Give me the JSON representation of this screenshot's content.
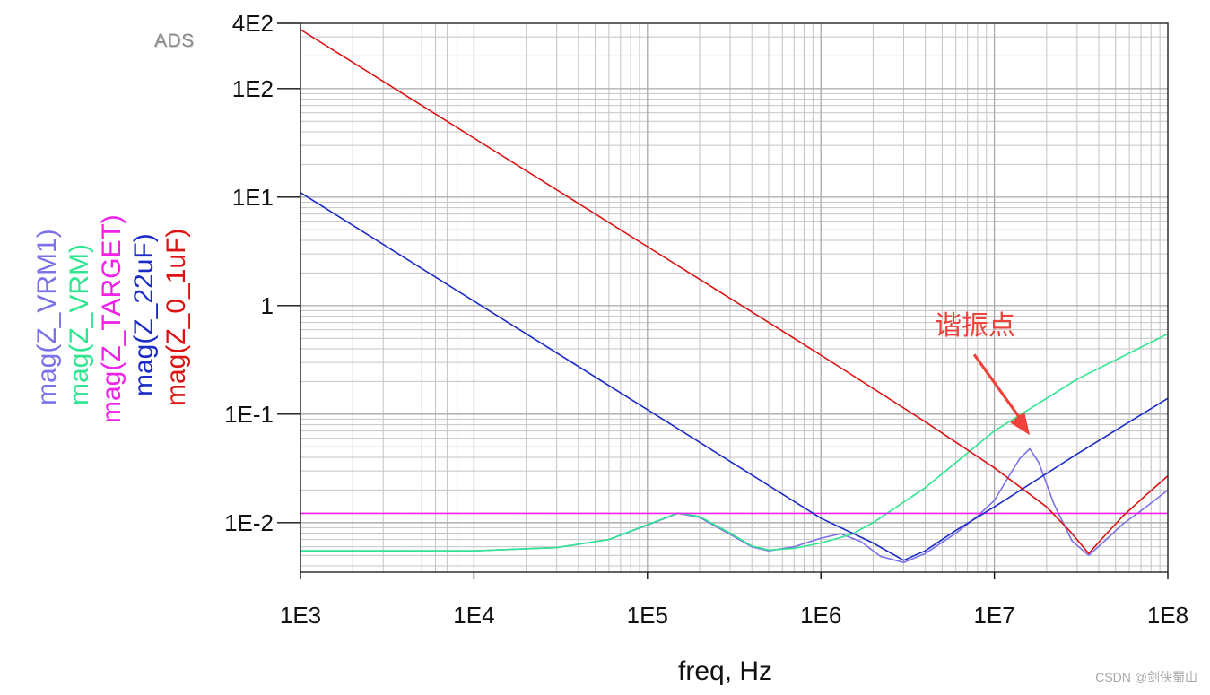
{
  "app": {
    "tool_tag": "ADS",
    "watermark": "CSDN @剑侠蜀山"
  },
  "chart_data": {
    "type": "line",
    "x_scale": "log",
    "y_scale": "log",
    "xlabel": "freq, Hz",
    "ylabel": "",
    "xlim": [
      1000,
      100000000
    ],
    "ylim": [
      0.0035,
      400
    ],
    "x_ticks": [
      {
        "value": 1000,
        "label": "1E3"
      },
      {
        "value": 10000,
        "label": "1E4"
      },
      {
        "value": 100000,
        "label": "1E5"
      },
      {
        "value": 1000000,
        "label": "1E6"
      },
      {
        "value": 10000000,
        "label": "1E7"
      },
      {
        "value": 100000000,
        "label": "1E8"
      }
    ],
    "y_ticks": [
      {
        "value": 400,
        "label": "4E2"
      },
      {
        "value": 100,
        "label": "1E2"
      },
      {
        "value": 10,
        "label": "1E1"
      },
      {
        "value": 1,
        "label": "1"
      },
      {
        "value": 0.1,
        "label": "1E-1"
      },
      {
        "value": 0.01,
        "label": "1E-2"
      }
    ],
    "grid": true,
    "legend_position": "left, rotated vertical",
    "annotation": {
      "text": "谐振点",
      "x": 16000000,
      "y": 0.055,
      "color": "#f0413b"
    },
    "series": [
      {
        "name": "mag(Z_VRM1)",
        "color": "#7b72e8",
        "points": [
          [
            1000,
            0.0055
          ],
          [
            10000,
            0.0055
          ],
          [
            30000,
            0.0059
          ],
          [
            60000,
            0.007
          ],
          [
            100000,
            0.0095
          ],
          [
            150000,
            0.0122
          ],
          [
            200000,
            0.0112
          ],
          [
            300000,
            0.0078
          ],
          [
            400000,
            0.006
          ],
          [
            500000,
            0.0055
          ],
          [
            700000,
            0.006
          ],
          [
            1000000,
            0.0072
          ],
          [
            1300000,
            0.0079
          ],
          [
            1700000,
            0.0067
          ],
          [
            2200000,
            0.0049
          ],
          [
            3000000,
            0.0043
          ],
          [
            4000000,
            0.0052
          ],
          [
            6000000,
            0.008
          ],
          [
            8000000,
            0.0115
          ],
          [
            10000000,
            0.016
          ],
          [
            12000000,
            0.026
          ],
          [
            14000000,
            0.039
          ],
          [
            16000000,
            0.048
          ],
          [
            18000000,
            0.036
          ],
          [
            22000000,
            0.015
          ],
          [
            28000000,
            0.0068
          ],
          [
            35000000,
            0.005
          ],
          [
            42000000,
            0.0065
          ],
          [
            55000000,
            0.0097
          ],
          [
            75000000,
            0.014
          ],
          [
            100000000,
            0.02
          ]
        ]
      },
      {
        "name": "mag(Z_VRM)",
        "color": "#2ee690",
        "points": [
          [
            1000,
            0.0055
          ],
          [
            10000,
            0.0055
          ],
          [
            30000,
            0.0059
          ],
          [
            60000,
            0.007
          ],
          [
            100000,
            0.0096
          ],
          [
            150000,
            0.0123
          ],
          [
            200000,
            0.0114
          ],
          [
            300000,
            0.008
          ],
          [
            400000,
            0.0061
          ],
          [
            500000,
            0.0056
          ],
          [
            700000,
            0.0058
          ],
          [
            1000000,
            0.0065
          ],
          [
            1500000,
            0.0078
          ],
          [
            2000000,
            0.01
          ],
          [
            4000000,
            0.021
          ],
          [
            10000000,
            0.07
          ],
          [
            30000000,
            0.21
          ],
          [
            100000000,
            0.55
          ]
        ]
      },
      {
        "name": "mag(Z_TARGET)",
        "color": "#ee22e8",
        "points": [
          [
            1000,
            0.0122
          ],
          [
            100000000,
            0.0122
          ]
        ]
      },
      {
        "name": "mag(Z_22uF)",
        "color": "#1a2bc8",
        "points": [
          [
            1000,
            11.0
          ],
          [
            10000,
            1.1
          ],
          [
            100000,
            0.11
          ],
          [
            1000000,
            0.011
          ],
          [
            2000000,
            0.0065
          ],
          [
            3000000,
            0.0045
          ],
          [
            4000000,
            0.0055
          ],
          [
            6000000,
            0.0085
          ],
          [
            10000000,
            0.014
          ],
          [
            30000000,
            0.043
          ],
          [
            100000000,
            0.14
          ]
        ]
      },
      {
        "name": "mag(Z_0_1uF)",
        "color": "#dd1111",
        "points": [
          [
            1000,
            350
          ],
          [
            10000,
            35
          ],
          [
            100000,
            3.5
          ],
          [
            1000000,
            0.35
          ],
          [
            4000000,
            0.085
          ],
          [
            10000000,
            0.032
          ],
          [
            20000000,
            0.014
          ],
          [
            27000000,
            0.0085
          ],
          [
            35000000,
            0.0052
          ],
          [
            42000000,
            0.0072
          ],
          [
            55000000,
            0.0115
          ],
          [
            75000000,
            0.018
          ],
          [
            100000000,
            0.027
          ]
        ]
      }
    ]
  }
}
